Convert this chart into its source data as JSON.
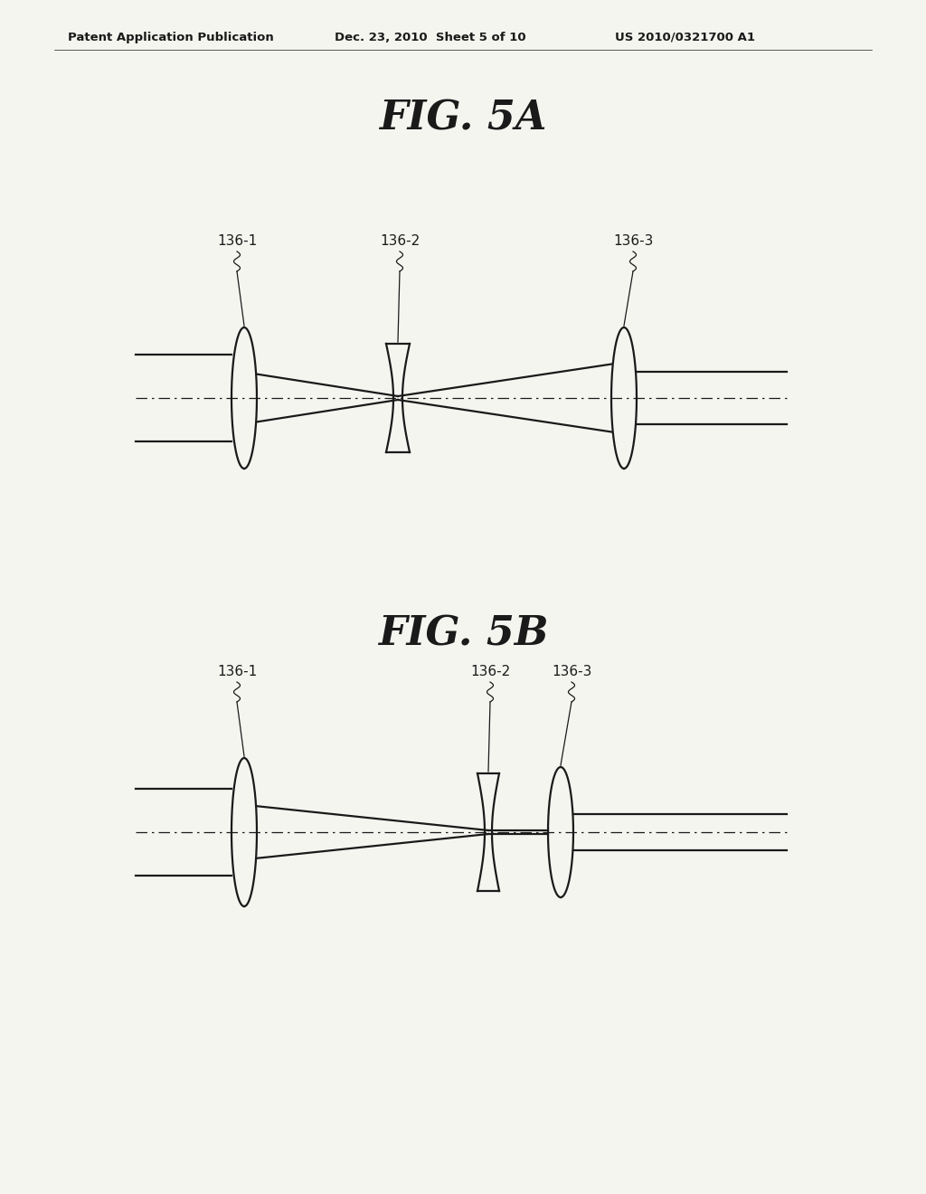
{
  "bg_color": "#f5f5f0",
  "header_left": "Patent Application Publication",
  "header_mid": "Dec. 23, 2010  Sheet 5 of 10",
  "header_right": "US 2010/0321700 A1",
  "fig5a_title": "FIG. 5A",
  "fig5b_title": "FIG. 5B",
  "label_136_1": "136-1",
  "label_136_2": "136-2",
  "label_136_3": "136-3",
  "lc": "#1a1a1a",
  "lw": 1.6,
  "thin_lw": 1.2
}
